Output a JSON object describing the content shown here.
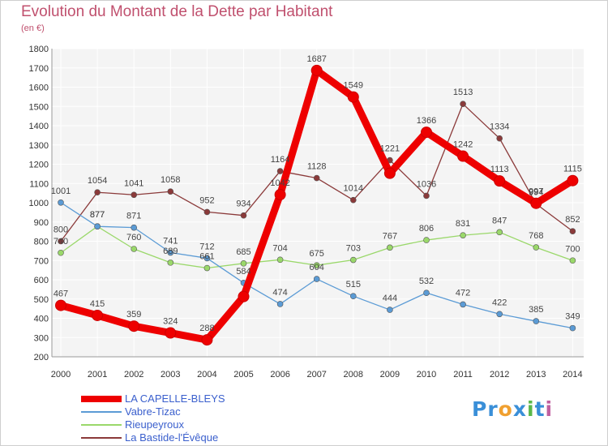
{
  "header": {
    "title": "Evolution du Montant de la Dette par Habitant",
    "unit": "(en €)"
  },
  "brand": {
    "parts": [
      "Pr",
      "o",
      "x",
      "i",
      "t",
      "i"
    ],
    "colors": [
      "#3a8fd8",
      "#f0a030",
      "#3a8fd8",
      "#5ab84a",
      "#3a8fd8",
      "#c060a0"
    ]
  },
  "chart_data": {
    "type": "line",
    "title": "Evolution du Montant de la Dette par Habitant",
    "ylabel": "(en €)",
    "xlabel": "",
    "x": [
      "2000",
      "2001",
      "2002",
      "2003",
      "2004",
      "2005",
      "2006",
      "2007",
      "2008",
      "2009",
      "2010",
      "2011",
      "2012",
      "2013",
      "2014"
    ],
    "ylim": [
      200,
      1800
    ],
    "yticks": [
      "200",
      "300",
      "400",
      "500",
      "600",
      "700",
      "800",
      "900",
      "1000",
      "1100",
      "1200",
      "1300",
      "1400",
      "1500",
      "1600",
      "1700",
      "1800"
    ],
    "grid": true,
    "legend_position": "bottom-left",
    "series": [
      {
        "name": "LA CAPELLE-BLEYS",
        "color": "#ee0000",
        "values": [
          467,
          415,
          359,
          324,
          288,
          513,
          1042,
          1687,
          1549,
          1153,
          1366,
          1242,
          1113,
          997,
          1115
        ],
        "labels": [
          "467",
          "415",
          "359",
          "324",
          "288",
          "",
          "1042",
          "1687",
          "1549",
          "",
          "1366",
          "1242",
          "1113",
          "997",
          "1115"
        ]
      },
      {
        "name": "Vabre-Tizac",
        "color": "#5b9bd5",
        "values": [
          1001,
          877,
          871,
          741,
          712,
          584,
          474,
          604,
          515,
          444,
          532,
          472,
          422,
          385,
          349
        ],
        "labels": [
          "1001",
          "877",
          "871",
          "741",
          "712",
          "584",
          "474",
          "604",
          "515",
          "444",
          "532",
          "472",
          "422",
          "385",
          "349"
        ]
      },
      {
        "name": "Rieupeyroux",
        "color": "#9ad86a",
        "values": [
          740,
          877,
          760,
          689,
          661,
          685,
          704,
          675,
          703,
          767,
          806,
          831,
          847,
          768,
          700
        ],
        "labels": [
          "740",
          "877",
          "760",
          "689",
          "661",
          "685",
          "704",
          "675",
          "703",
          "767",
          "806",
          "831",
          "847",
          "768",
          "700"
        ]
      },
      {
        "name": "La Bastide-l'Évêque",
        "color": "#8b3a3a",
        "values": [
          800,
          1054,
          1041,
          1058,
          952,
          934,
          1164,
          1128,
          1014,
          1221,
          1036,
          1513,
          1334,
          994,
          852
        ],
        "labels": [
          "800",
          "1054",
          "1041",
          "1058",
          "952",
          "934",
          "1164",
          "1128",
          "1014",
          "1221",
          "1036",
          "1513",
          "1334",
          "994",
          "852"
        ]
      }
    ]
  }
}
